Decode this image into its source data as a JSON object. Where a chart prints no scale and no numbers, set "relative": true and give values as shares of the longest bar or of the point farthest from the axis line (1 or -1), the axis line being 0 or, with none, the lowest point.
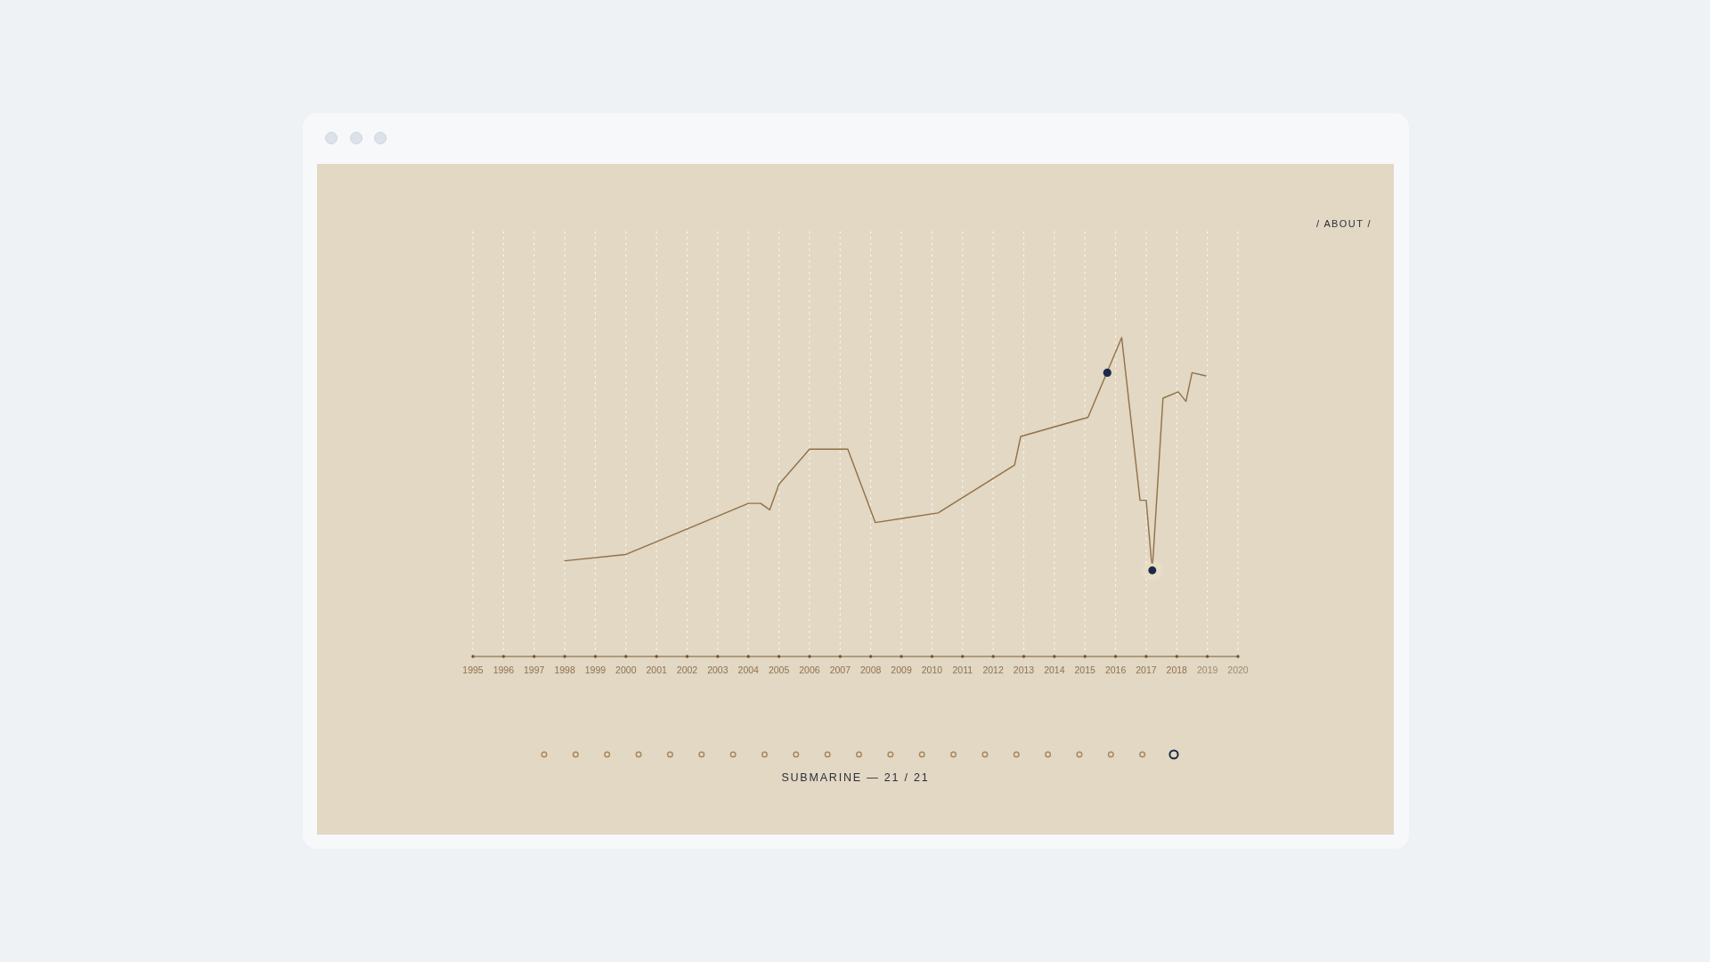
{
  "chart_data": {
    "type": "line",
    "title": "SUBMARINE — 21 / 21",
    "annotations": [
      "/ ABOUT /"
    ],
    "relative": true,
    "xlim": [
      1995,
      2020
    ],
    "xticks": [
      1995,
      1996,
      1997,
      1998,
      1999,
      2000,
      2001,
      2002,
      2003,
      2004,
      2005,
      2006,
      2007,
      2008,
      2009,
      2010,
      2011,
      2012,
      2013,
      2014,
      2015,
      2016,
      2017,
      2018,
      2019,
      2020
    ],
    "grid": "x",
    "series": [
      {
        "color": "#917048",
        "x": [
          1998,
          2000,
          2001,
          2002,
          2004,
          2004.4,
          2004.7,
          2005,
          2006,
          2007.25,
          2008.15,
          2010.2,
          2012.7,
          2012.9,
          2015.1,
          2016.2,
          2016.8,
          2017,
          2017.2,
          2017.55,
          2018.05,
          2018.3,
          2018.5,
          2018.95
        ],
        "values": [
          0.3,
          0.32,
          0.36,
          0.4,
          0.48,
          0.48,
          0.46,
          0.54,
          0.65,
          0.65,
          0.42,
          0.45,
          0.6,
          0.69,
          0.75,
          1,
          0.49,
          0.49,
          0.27,
          0.81,
          0.83,
          0.8,
          0.89,
          0.88
        ]
      },
      {
        "type": "scatter",
        "color": "#1c2a48",
        "marker": "circle",
        "x": [
          2015.73,
          2017.2
        ],
        "values": [
          0.89,
          0.27
        ]
      }
    ]
  }
}
